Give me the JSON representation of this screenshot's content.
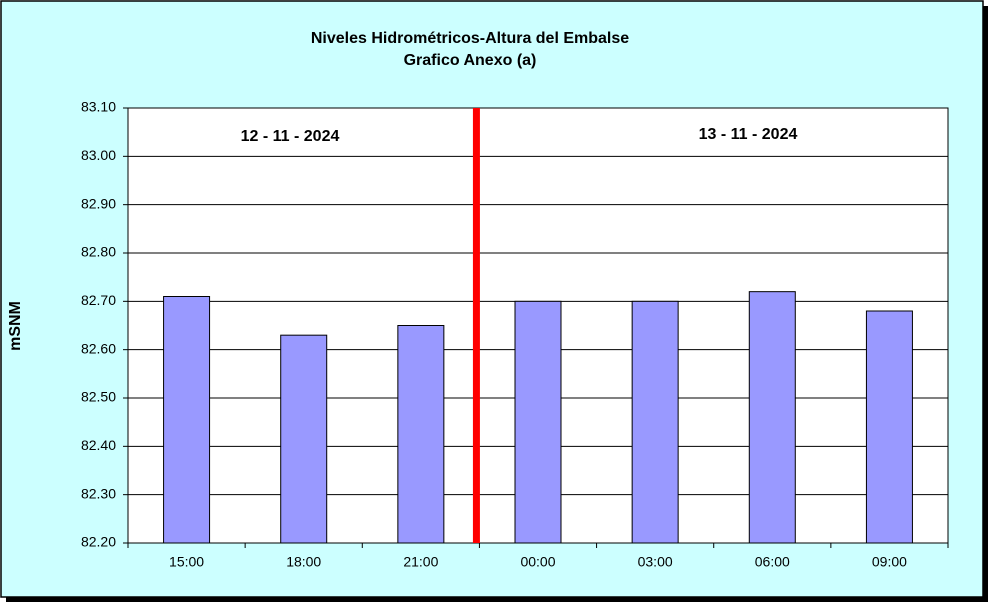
{
  "chart_data": {
    "type": "bar",
    "title": "Niveles Hidrométricos-Altura del Embalse",
    "subtitle": "Grafico Anexo (a)",
    "y_label": "mSNM",
    "annotations": [
      "12 - 11 - 2024",
      "13 - 11 - 2024"
    ],
    "categories": [
      "15:00",
      "18:00",
      "21:00",
      "00:00",
      "03:00",
      "06:00",
      "09:00"
    ],
    "values": [
      82.71,
      82.63,
      82.65,
      82.7,
      82.7,
      82.72,
      82.68
    ],
    "color": "#9999ff",
    "ylim": [
      82.2,
      83.1
    ],
    "yticks": [
      {
        "value": 82.2,
        "label": "82.20"
      },
      {
        "value": 82.3,
        "label": "82.30"
      },
      {
        "value": 82.4,
        "label": "82.40"
      },
      {
        "value": 82.5,
        "label": "82.50"
      },
      {
        "value": 82.6,
        "label": "82.60"
      },
      {
        "value": 82.7,
        "label": "82.70"
      },
      {
        "value": 82.8,
        "label": "82.80"
      },
      {
        "value": 82.9,
        "label": "82.90"
      },
      {
        "value": 83.0,
        "label": "83.00"
      },
      {
        "value": 83.1,
        "label": "83.10"
      }
    ],
    "grid": true
  }
}
